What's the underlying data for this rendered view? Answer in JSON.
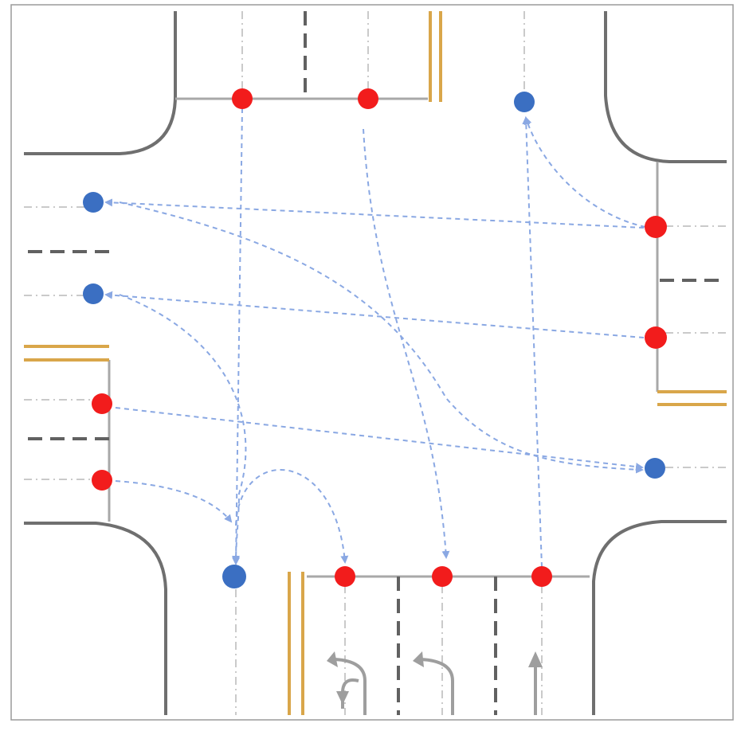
{
  "diagram": {
    "kind": "four-way intersection lane-connection diagram",
    "colors": {
      "background": "#ffffff",
      "frame": "#9a9a9a",
      "curb": "#6f6f6f",
      "stop_line": "#a8a8a8",
      "lane_dash": "#616161",
      "center_dashdot": "#b8b8b8",
      "double_yellow": "#d9a64a",
      "entry_node": "#f21c1c",
      "exit_node": "#3b6fc2",
      "connection_path": "#8aa8e3",
      "lane_arrow": "#9e9e9e"
    },
    "legend": [],
    "node_types": [
      "entry",
      "exit"
    ],
    "counts": {
      "entry_nodes": 9,
      "exit_nodes": 5,
      "connection_paths": 11
    },
    "icons": [
      "left-turn-arrow-icon",
      "u-turn-arrow-icon",
      "straight-arrow-icon"
    ]
  }
}
